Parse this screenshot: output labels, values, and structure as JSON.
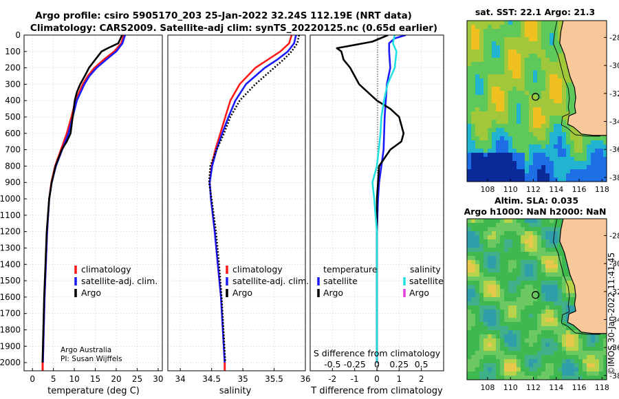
{
  "figure": {
    "title_line1": "Argo profile: csiro 5905170_203 25-Jan-2022 32.24S 112.19E (NRT data)",
    "title_line2": "Climatology: CARS2009. Satellite-adj clim: synTS_20220125.nc (0.65d earlier)",
    "credit_line1": "Argo Australia",
    "credit_line2": "PI: Susan Wijffels",
    "timestamp": "©IMOS 30-Jan-2022 11:41:45"
  },
  "colors": {
    "climatology": "#ff1a1a",
    "satellite": "#1a1aff",
    "argo": "#000000",
    "sat_salinity": "#22e0e0",
    "argo_salinity": "#e040e0",
    "land": "#f8c89a"
  },
  "legend": {
    "climatology": "climatology",
    "satellite_adj": "satellite-adj. clim.",
    "argo": "Argo",
    "temperature_header": "temperature",
    "salinity_header": "salinity",
    "satellite": "satellite"
  },
  "chart_data": [
    {
      "type": "line",
      "title": "",
      "xlabel": "temperature (deg C)",
      "ylabel": "",
      "xlim": [
        -2,
        31
      ],
      "ylim": [
        2050,
        0
      ],
      "xticks": [
        "0",
        "5",
        "10",
        "15",
        "20",
        "25",
        "30"
      ],
      "yticks": [
        "0",
        "100",
        "200",
        "300",
        "400",
        "500",
        "600",
        "700",
        "800",
        "900",
        "1000",
        "1100",
        "1200",
        "1300",
        "1400",
        "1500",
        "1600",
        "1700",
        "1800",
        "1900",
        "2000"
      ],
      "series": [
        {
          "name": "climatology",
          "style": "solid",
          "depth": [
            0,
            50,
            100,
            150,
            200,
            250,
            300,
            400,
            500,
            600,
            700,
            800,
            900,
            1000,
            1200,
            1400,
            1600,
            1800,
            2000
          ],
          "values": [
            21.8,
            21.2,
            19.5,
            17.0,
            14.8,
            13.2,
            12.0,
            10.3,
            9.3,
            8.2,
            6.8,
            5.4,
            4.5,
            4.0,
            3.5,
            3.2,
            2.9,
            2.7,
            2.5
          ]
        },
        {
          "name": "satellite-adj. clim.",
          "style": "solid",
          "depth": [
            0,
            50,
            100,
            150,
            200,
            250,
            300,
            400,
            500,
            600,
            700,
            800,
            900,
            1000,
            1200,
            1400,
            1600,
            1800,
            2000
          ],
          "values": [
            22.1,
            21.5,
            20.0,
            17.6,
            15.3,
            13.6,
            12.4,
            10.6,
            9.6,
            8.6,
            7.1,
            5.6,
            4.6,
            4.0,
            3.5,
            3.2,
            2.9,
            2.7,
            2.5
          ]
        },
        {
          "name": "Argo",
          "style": "solid",
          "depth": [
            0,
            50,
            80,
            100,
            150,
            200,
            250,
            300,
            350,
            400,
            500,
            600,
            650,
            700,
            800,
            900,
            1000,
            1200,
            1400,
            1600,
            1800,
            2000
          ],
          "values": [
            21.4,
            20.5,
            18.0,
            16.5,
            15.0,
            13.5,
            12.5,
            11.4,
            10.6,
            10.1,
            9.6,
            9.1,
            8.2,
            7.0,
            5.5,
            4.6,
            4.0,
            3.4,
            3.1,
            2.8,
            2.6,
            2.4
          ]
        }
      ],
      "legend_entries": [
        "climatology",
        "satellite-adj. clim.",
        "Argo"
      ]
    },
    {
      "type": "line",
      "xlabel": "salinity",
      "xlim": [
        33.8,
        36.0
      ],
      "ylim": [
        2050,
        0
      ],
      "xticks": [
        "34",
        "34.5",
        "35",
        "35.5",
        "36"
      ],
      "series": [
        {
          "name": "climatology",
          "style": "solid",
          "depth": [
            0,
            50,
            100,
            150,
            200,
            300,
            400,
            500,
            600,
            700,
            800,
            900,
            1000,
            1200,
            1400,
            1600,
            1800,
            2000
          ],
          "values": [
            35.78,
            35.74,
            35.6,
            35.4,
            35.2,
            34.95,
            34.8,
            34.72,
            34.64,
            34.56,
            34.5,
            34.47,
            34.49,
            34.55,
            34.6,
            34.65,
            34.68,
            34.71
          ]
        },
        {
          "name": "satellite-adj. clim.",
          "style": "solid",
          "depth": [
            0,
            50,
            100,
            150,
            200,
            300,
            400,
            500,
            600,
            700,
            800,
            900,
            1000,
            1200,
            1400,
            1600,
            1800,
            2000
          ],
          "values": [
            35.85,
            35.82,
            35.72,
            35.55,
            35.35,
            35.05,
            34.88,
            34.77,
            34.67,
            34.58,
            34.51,
            34.47,
            34.49,
            34.55,
            34.6,
            34.65,
            34.68,
            34.71
          ]
        },
        {
          "name": "Argo",
          "style": "dotted",
          "depth": [
            0,
            50,
            100,
            150,
            200,
            300,
            400,
            500,
            600,
            700,
            800,
            900,
            1000,
            1200,
            1400,
            1600,
            1800,
            2000
          ],
          "values": [
            35.9,
            35.87,
            35.78,
            35.65,
            35.5,
            35.2,
            34.95,
            34.8,
            34.7,
            34.58,
            34.48,
            34.46,
            34.5,
            34.57,
            34.62,
            34.66,
            34.69,
            34.72
          ]
        }
      ],
      "legend_entries": [
        "climatology",
        "satellite-adj. clim.",
        "Argo"
      ]
    },
    {
      "type": "line",
      "xlabel": "T difference from climatology",
      "xlabel_top": "S difference from climatology",
      "xlim": [
        -3,
        3
      ],
      "ylim": [
        2050,
        0
      ],
      "xticks": [
        "-2",
        "-1",
        "0",
        "1",
        "2"
      ],
      "xticks_salinity": [
        "-0.5",
        "-0.25",
        "0",
        "0.25",
        "0.5"
      ],
      "series": [
        {
          "name": "temperature satellite",
          "style": "solid",
          "depth": [
            0,
            20,
            50,
            100,
            200,
            300,
            500,
            700,
            800,
            900,
            1000,
            1200,
            1500,
            2000
          ],
          "values": [
            1.3,
            0.8,
            0.55,
            0.55,
            0.6,
            0.45,
            0.35,
            0.3,
            0.2,
            0.1,
            0.05,
            0.0,
            0.0,
            0.0
          ]
        },
        {
          "name": "temperature Argo",
          "style": "solid",
          "depth": [
            0,
            40,
            60,
            80,
            100,
            150,
            200,
            300,
            400,
            450,
            500,
            600,
            650,
            700,
            800,
            900,
            1000,
            1100,
            1200,
            1500,
            2000
          ],
          "values": [
            0.5,
            -0.2,
            -1.0,
            -1.8,
            -1.6,
            -1.5,
            -1.2,
            -0.8,
            0.0,
            0.6,
            1.0,
            1.2,
            1.1,
            0.6,
            0.1,
            0.05,
            0.0,
            0.0,
            0.0,
            0.0,
            0.0
          ]
        },
        {
          "name": "salinity satellite",
          "style": "solid",
          "depth": [
            0,
            50,
            100,
            200,
            300,
            400,
            500,
            600,
            700,
            800,
            900,
            1000,
            1200,
            1500,
            2000
          ],
          "values": [
            0.2,
            0.18,
            0.22,
            0.2,
            0.12,
            0.08,
            0.05,
            0.04,
            0.02,
            0.0,
            -0.05,
            -0.03,
            0.0,
            0.0,
            0.0
          ]
        }
      ],
      "legend_entries": [
        "temperature",
        "satellite",
        "Argo",
        "salinity",
        "satellite",
        "Argo"
      ]
    },
    {
      "type": "heatmap",
      "title": "sat. SST: 22.1 Argo: 21.3",
      "xticks": [
        "108",
        "110",
        "112",
        "114",
        "116",
        "118"
      ],
      "yticks": [
        "-28",
        "-30",
        "-32",
        "-34",
        "-36",
        "-38"
      ],
      "xlim": [
        106.2,
        118.4
      ],
      "ylim": [
        -38.3,
        -26.8
      ],
      "marker": {
        "lon": 112.19,
        "lat": -32.24
      }
    },
    {
      "type": "heatmap",
      "title_line1": "Altim. SLA: 0.035",
      "title_line2": "Argo h1000: NaN h2000: NaN",
      "xticks": [
        "108",
        "110",
        "112",
        "114",
        "116",
        "118"
      ],
      "yticks": [
        "-28",
        "-30",
        "-32",
        "-34",
        "-36",
        "-38"
      ],
      "xlim": [
        106.2,
        118.4
      ],
      "ylim": [
        -38.3,
        -26.8
      ],
      "marker": {
        "lon": 112.19,
        "lat": -32.24
      }
    }
  ]
}
